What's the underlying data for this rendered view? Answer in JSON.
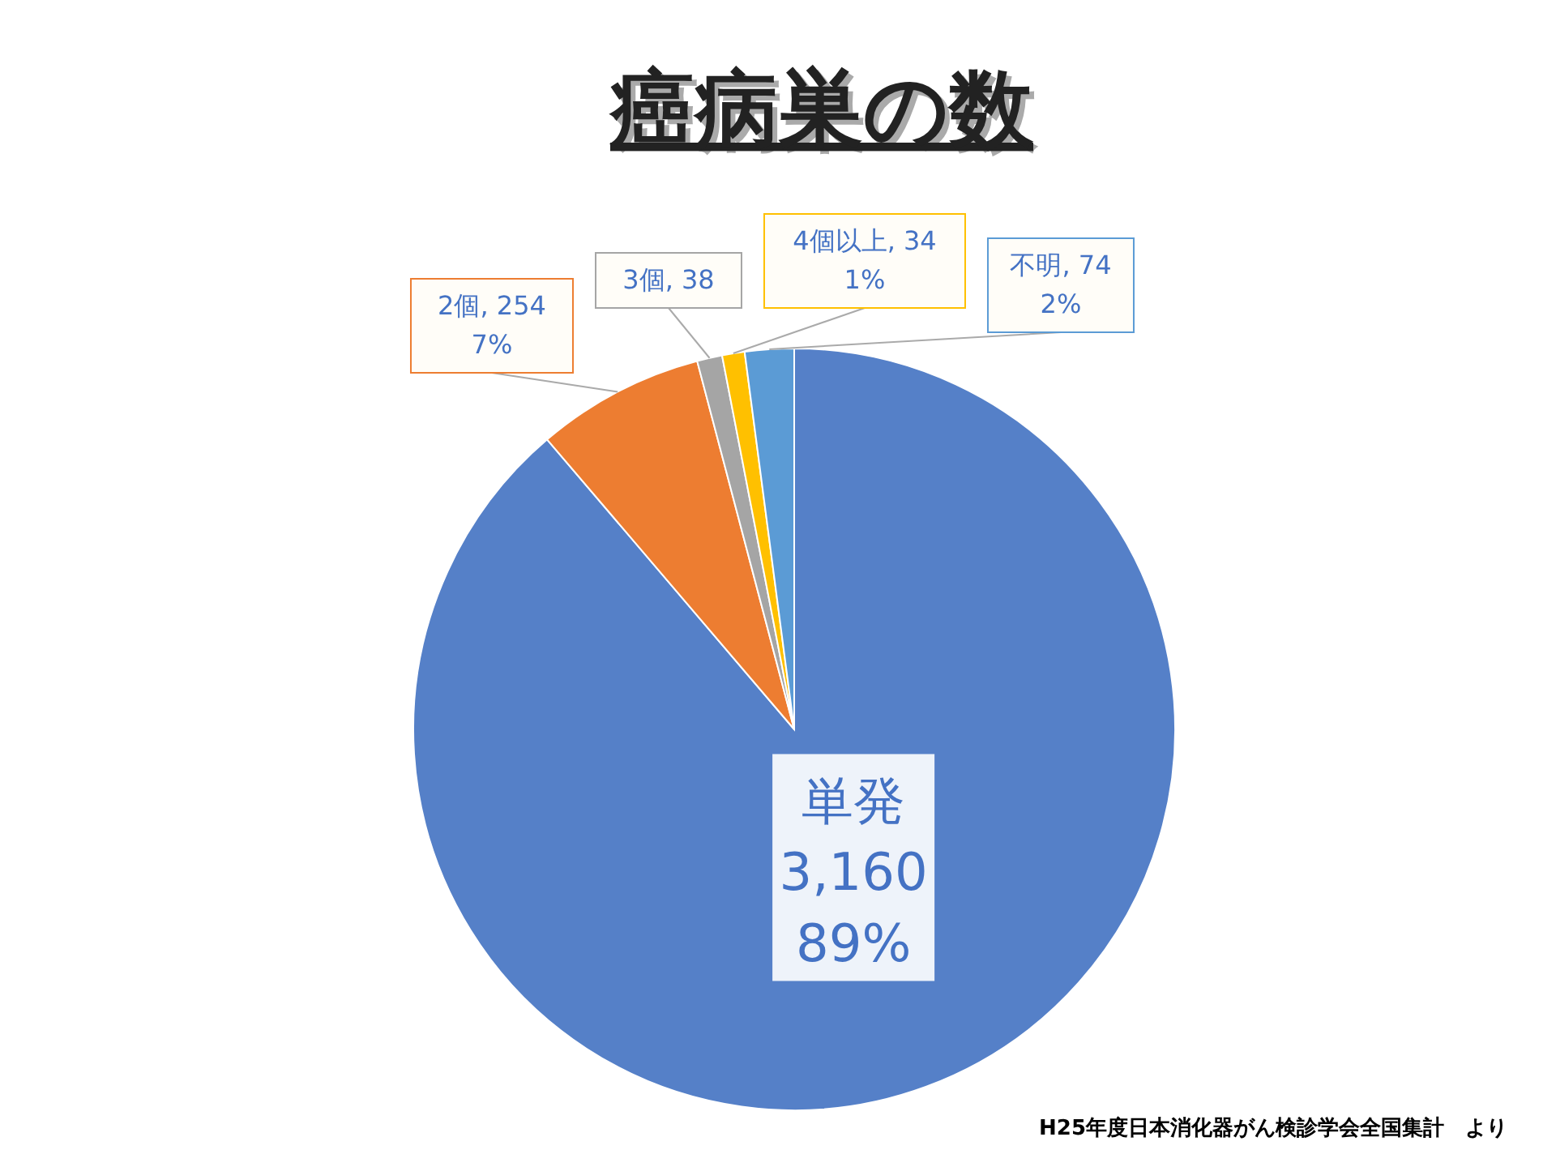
{
  "chart_data": {
    "type": "pie",
    "title": "癌病巣の数",
    "categories": [
      "単発",
      "2個",
      "3個",
      "4個以上",
      "不明"
    ],
    "values": [
      3160,
      254,
      38,
      34,
      74
    ],
    "colors": [
      "#5580c8",
      "#ed7d31",
      "#a5a5a5",
      "#ffc000",
      "#5b9bd5"
    ],
    "value_labels": [
      "3,160\n89%",
      ", 254\n7%",
      ", 38",
      ", 34\n1%",
      ", 74\n2%"
    ],
    "annotations": [
      "H25年度日本消化器がん検診学会全国集計　より"
    ]
  }
}
